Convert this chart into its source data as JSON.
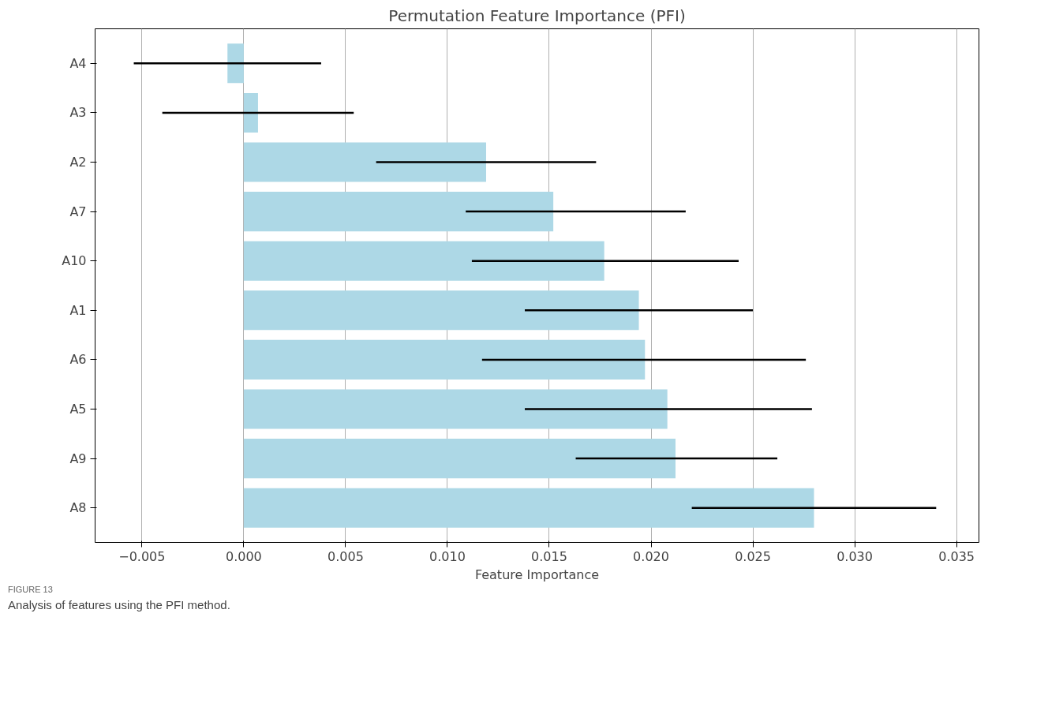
{
  "chart_data": {
    "type": "bar",
    "orientation": "horizontal",
    "title": "Permutation Feature Importance (PFI)",
    "xlabel": "Feature Importance",
    "categories": [
      "A4",
      "A3",
      "A2",
      "A7",
      "A10",
      "A1",
      "A6",
      "A5",
      "A9",
      "A8"
    ],
    "values": [
      -0.0008,
      0.0007,
      0.0119,
      0.0152,
      0.0177,
      0.0194,
      0.0197,
      0.0208,
      0.0212,
      0.028
    ],
    "errors": [
      [
        -0.0054,
        0.0038
      ],
      [
        -0.004,
        0.0054
      ],
      [
        0.0065,
        0.0173
      ],
      [
        0.0109,
        0.0217
      ],
      [
        0.0112,
        0.0243
      ],
      [
        0.0138,
        0.025
      ],
      [
        0.0117,
        0.0276
      ],
      [
        0.0138,
        0.0279
      ],
      [
        0.0163,
        0.0262
      ],
      [
        0.022,
        0.034
      ]
    ],
    "color": "#add8e6",
    "xlim": [
      -0.0073,
      0.0361
    ],
    "xticks": [
      {
        "value": -0.005,
        "label": "−0.005"
      },
      {
        "value": 0.0,
        "label": "0.000"
      },
      {
        "value": 0.005,
        "label": "0.005"
      },
      {
        "value": 0.01,
        "label": "0.010"
      },
      {
        "value": 0.015,
        "label": "0.015"
      },
      {
        "value": 0.02,
        "label": "0.020"
      },
      {
        "value": 0.025,
        "label": "0.025"
      },
      {
        "value": 0.03,
        "label": "0.030"
      },
      {
        "value": 0.035,
        "label": "0.035"
      }
    ],
    "grid": "x",
    "annotations": [
      "FIGURE 13",
      "Analysis of features using the PFI method."
    ]
  }
}
